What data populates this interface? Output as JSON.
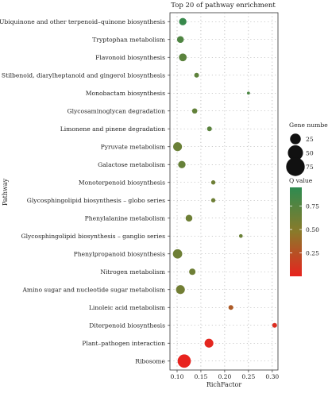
{
  "chart_data": {
    "type": "scatter",
    "title": "Top 20 of pathway enrichment",
    "xlabel": "RichFactor",
    "ylabel": "Pathway",
    "xlim": [
      0.085,
      0.312
    ],
    "xticks": [
      "0.10",
      "0.15",
      "0.20",
      "0.25",
      "0.30"
    ],
    "xtick_values": [
      0.1,
      0.15,
      0.2,
      0.25,
      0.3
    ],
    "grid": true,
    "size_legend": {
      "title": "Gene number",
      "levels": [
        25,
        50,
        75
      ]
    },
    "color_legend": {
      "title": "Q value",
      "ticks": [
        0.75,
        0.5,
        0.25
      ],
      "tick_labels": [
        "0.75",
        "0.50",
        "0.25"
      ],
      "range": [
        0.0,
        0.95
      ],
      "low_color": "#e8231e",
      "mid_color": "#8a7a2a",
      "high_color": "#2e8b50"
    },
    "points": [
      {
        "pathway": "Ubiquinone and other terpenoid–quinone biosynthesis",
        "x": 0.112,
        "genes": 12,
        "q": 0.9
      },
      {
        "pathway": "Tryptophan metabolism",
        "x": 0.107,
        "genes": 10,
        "q": 0.78
      },
      {
        "pathway": "Flavonoid biosynthesis",
        "x": 0.112,
        "genes": 13,
        "q": 0.72
      },
      {
        "pathway": "Stilbenoid, diarylheptanoid and gingerol biosynthesis",
        "x": 0.141,
        "genes": 5,
        "q": 0.7
      },
      {
        "pathway": "Monobactam biosynthesis",
        "x": 0.25,
        "genes": 2,
        "q": 0.8
      },
      {
        "pathway": "Glycosaminoglycan degradation",
        "x": 0.137,
        "genes": 6,
        "q": 0.68
      },
      {
        "pathway": "Limonene and pinene degradation",
        "x": 0.168,
        "genes": 5,
        "q": 0.72
      },
      {
        "pathway": "Pyruvate metabolism",
        "x": 0.101,
        "genes": 17,
        "q": 0.64
      },
      {
        "pathway": "Galactose metabolism",
        "x": 0.11,
        "genes": 12,
        "q": 0.66
      },
      {
        "pathway": "Monoterpenoid biosynthesis",
        "x": 0.176,
        "genes": 4,
        "q": 0.62
      },
      {
        "pathway": "Glycosphingolipid biosynthesis – globo series",
        "x": 0.176,
        "genes": 4,
        "q": 0.62
      },
      {
        "pathway": "Phenylalanine metabolism",
        "x": 0.125,
        "genes": 10,
        "q": 0.62
      },
      {
        "pathway": "Glycosphingolipid biosynthesis – ganglio series",
        "x": 0.234,
        "genes": 3,
        "q": 0.64
      },
      {
        "pathway": "Phenylpropanoid biosynthesis",
        "x": 0.101,
        "genes": 19,
        "q": 0.62
      },
      {
        "pathway": "Nitrogen metabolism",
        "x": 0.132,
        "genes": 9,
        "q": 0.62
      },
      {
        "pathway": "Amino sugar and nucleotide sugar metabolism",
        "x": 0.107,
        "genes": 17,
        "q": 0.6
      },
      {
        "pathway": "Linoleic acid metabolism",
        "x": 0.213,
        "genes": 5,
        "q": 0.3
      },
      {
        "pathway": "Diterpenoid biosynthesis",
        "x": 0.305,
        "genes": 5,
        "q": 0.06
      },
      {
        "pathway": "Plant–pathogen interaction",
        "x": 0.167,
        "genes": 17,
        "q": 0.02
      },
      {
        "pathway": "Ribosome",
        "x": 0.115,
        "genes": 38,
        "q": 0.0
      }
    ]
  }
}
